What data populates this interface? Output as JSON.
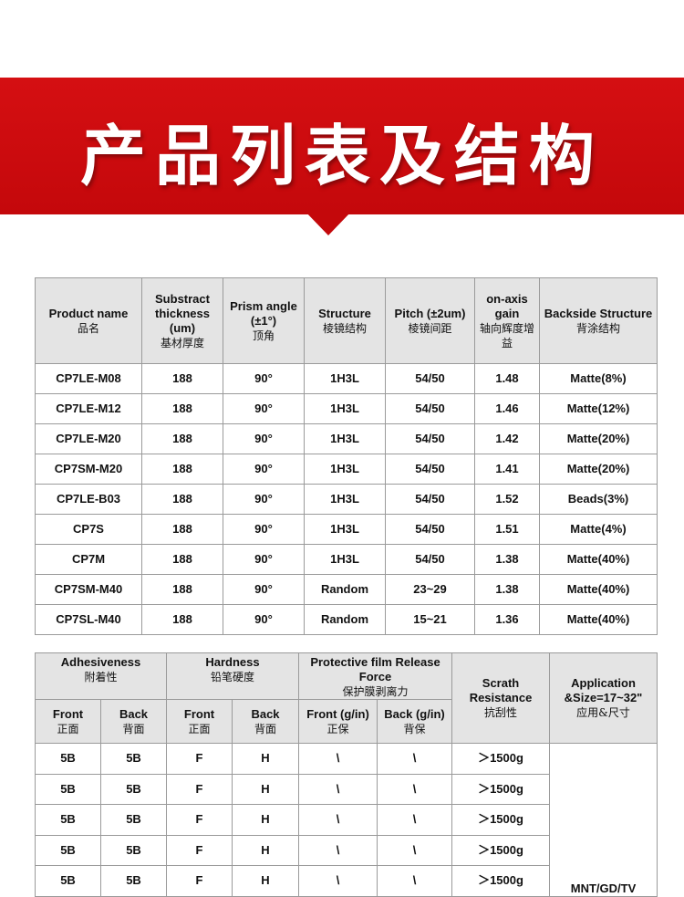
{
  "banner": {
    "title": "产品列表及结构",
    "color": "#c4080b"
  },
  "table1": {
    "headers": [
      {
        "en": "Product name",
        "cn": "品名"
      },
      {
        "en": "Substract thickness (um)",
        "cn": "基材厚度"
      },
      {
        "en": "Prism angle (±1°)",
        "cn": "顶角"
      },
      {
        "en": "Structure",
        "cn": "棱镜结构"
      },
      {
        "en": "Pitch (±2um)",
        "cn": "棱镜间距"
      },
      {
        "en": "on-axis gain",
        "cn": "轴向辉度增益"
      },
      {
        "en": "Backside Structure",
        "cn": "背涂结构"
      }
    ],
    "rows": [
      [
        "CP7LE-M08",
        "188",
        "90°",
        "1H3L",
        "54/50",
        "1.48",
        "Matte(8%)"
      ],
      [
        "CP7LE-M12",
        "188",
        "90°",
        "1H3L",
        "54/50",
        "1.46",
        "Matte(12%)"
      ],
      [
        "CP7LE-M20",
        "188",
        "90°",
        "1H3L",
        "54/50",
        "1.42",
        "Matte(20%)"
      ],
      [
        "CP7SM-M20",
        "188",
        "90°",
        "1H3L",
        "54/50",
        "1.41",
        "Matte(20%)"
      ],
      [
        "CP7LE-B03",
        "188",
        "90°",
        "1H3L",
        "54/50",
        "1.52",
        "Beads(3%)"
      ],
      [
        "CP7S",
        "188",
        "90°",
        "1H3L",
        "54/50",
        "1.51",
        "Matte(4%)"
      ],
      [
        "CP7M",
        "188",
        "90°",
        "1H3L",
        "54/50",
        "1.38",
        "Matte(40%)"
      ],
      [
        "CP7SM-M40",
        "188",
        "90°",
        "Random",
        "23~29",
        "1.38",
        "Matte(40%)"
      ],
      [
        "CP7SL-M40",
        "188",
        "90°",
        "Random",
        "15~21",
        "1.36",
        "Matte(40%)"
      ]
    ]
  },
  "table2": {
    "groups": [
      {
        "en": "Adhesiveness",
        "cn": "附着性"
      },
      {
        "en": "Hardness",
        "cn": "铅笔硬度"
      },
      {
        "en": "Protective film Release Force",
        "cn": "保护膜剥离力"
      },
      {
        "en": "Scrath Resistance",
        "cn": "抗刮性"
      },
      {
        "en": "Application &Size=17~32\"",
        "cn": "应用&尺寸"
      }
    ],
    "sub": [
      {
        "en": "Front",
        "cn": "正面"
      },
      {
        "en": "Back",
        "cn": "背面"
      },
      {
        "en": "Front",
        "cn": "正面"
      },
      {
        "en": "Back",
        "cn": "背面"
      },
      {
        "en": "Front (g/in)",
        "cn": "正保"
      },
      {
        "en": "Back (g/in)",
        "cn": "背保"
      }
    ],
    "rows": [
      [
        "5B",
        "5B",
        "F",
        "H",
        "\\",
        "\\",
        "＞1500g"
      ],
      [
        "5B",
        "5B",
        "F",
        "H",
        "\\",
        "\\",
        "＞1500g"
      ],
      [
        "5B",
        "5B",
        "F",
        "H",
        "\\",
        "\\",
        "＞1500g"
      ],
      [
        "5B",
        "5B",
        "F",
        "H",
        "\\",
        "\\",
        "＞1500g"
      ],
      [
        "5B",
        "5B",
        "F",
        "H",
        "\\",
        "\\",
        "＞1500g"
      ]
    ],
    "application": "MNT/GD/TV"
  }
}
